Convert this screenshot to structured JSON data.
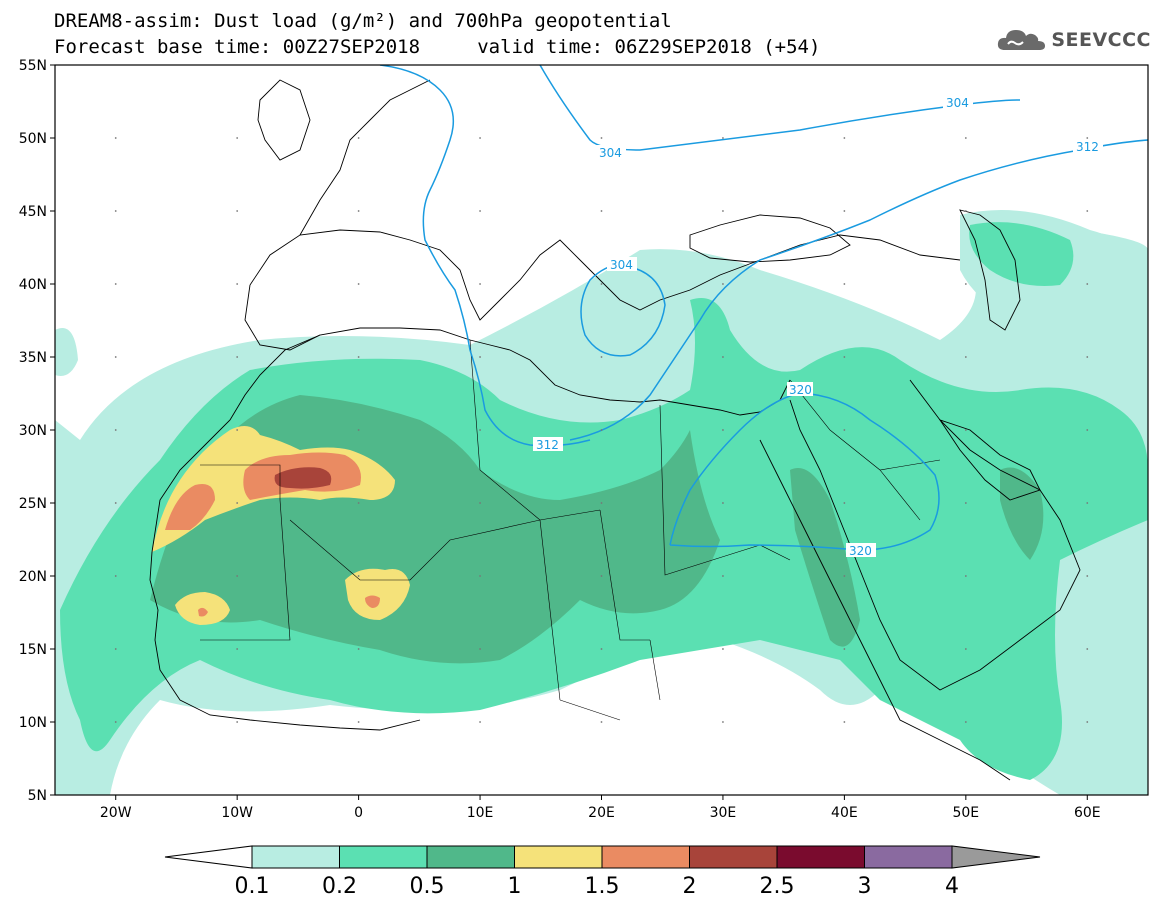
{
  "header": {
    "title_line1": "DREAM8-assim: Dust load (g/m²) and 700hPa geopotential",
    "title_line2": "Forecast base time: 00Z27SEP2018     valid time: 06Z29SEP2018 (+54)"
  },
  "logo": {
    "text": "SEEVCCC",
    "icon": "cloud-icon"
  },
  "map": {
    "lon_range": [
      -25,
      65
    ],
    "lat_range": [
      5,
      55
    ],
    "lat_labels": [
      "55N",
      "50N",
      "45N",
      "40N",
      "35N",
      "30N",
      "25N",
      "20N",
      "15N",
      "10N",
      "5N"
    ],
    "lon_labels": [
      "20W",
      "10W",
      "0",
      "10E",
      "20E",
      "30E",
      "40E",
      "50E",
      "60E"
    ],
    "contour_labels": [
      "304",
      "304",
      "304",
      "312",
      "312",
      "320",
      "320"
    ]
  },
  "colorbar": {
    "labels": [
      "0.1",
      "0.2",
      "0.5",
      "1",
      "1.5",
      "2",
      "2.5",
      "3",
      "4"
    ],
    "colors": [
      "#ffffff",
      "#b8ede2",
      "#5be0b2",
      "#50b88a",
      "#f5e27a",
      "#ea8b62",
      "#a8443a",
      "#7a0b2e",
      "#8a6aa0",
      "#9a9a9a"
    ]
  },
  "palette": {
    "dust_lightest": "#b8ede2",
    "dust_light": "#5be0b2",
    "dust_mid": "#50b88a",
    "dust_yellow": "#f5e27a",
    "dust_orange": "#ea8b62",
    "dust_brown": "#a8443a",
    "contour": "#1a9be0"
  }
}
